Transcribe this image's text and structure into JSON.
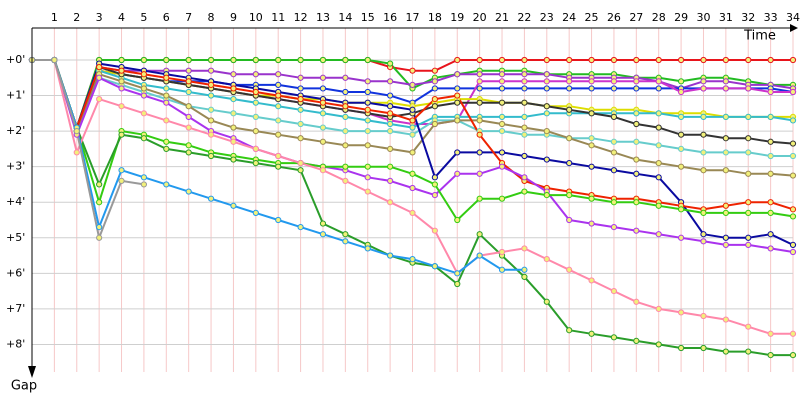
{
  "chart_data": {
    "type": "line",
    "x_label": "Time",
    "y_label": "Gap",
    "x": [
      0,
      1,
      2,
      3,
      4,
      5,
      6,
      7,
      8,
      9,
      10,
      11,
      12,
      13,
      14,
      15,
      16,
      17,
      18,
      19,
      20,
      21,
      22,
      23,
      24,
      25,
      26,
      27,
      28,
      29,
      30,
      31,
      32,
      33,
      34
    ],
    "xlim": [
      0,
      34
    ],
    "xticks": [
      1,
      2,
      3,
      4,
      5,
      6,
      7,
      8,
      9,
      10,
      11,
      12,
      13,
      14,
      15,
      16,
      17,
      18,
      19,
      20,
      21,
      22,
      23,
      24,
      25,
      26,
      27,
      28,
      29,
      30,
      31,
      32,
      33,
      34
    ],
    "ylim": [
      -0.9,
      9
    ],
    "y_inverted": true,
    "yticks": [
      {
        "value": 0,
        "label": "+0'"
      },
      {
        "value": 1,
        "label": "+1'"
      },
      {
        "value": 2,
        "label": "+2'"
      },
      {
        "value": 3,
        "label": "+3'"
      },
      {
        "value": 4,
        "label": "+4'"
      },
      {
        "value": 5,
        "label": "+5'"
      },
      {
        "value": 6,
        "label": "+6'"
      },
      {
        "value": 7,
        "label": "+7'"
      },
      {
        "value": 8,
        "label": "+8'"
      }
    ],
    "grid": true,
    "series": [
      {
        "color": "#e8141c",
        "values": [
          0,
          0,
          1.9,
          0,
          0,
          0,
          0,
          0,
          0,
          0,
          0,
          0,
          0,
          0,
          0,
          0,
          0.2,
          0.3,
          0.3,
          0,
          0,
          0,
          0,
          0,
          0,
          0,
          0,
          0,
          0,
          0,
          0,
          0,
          0,
          0,
          0
        ]
      },
      {
        "color": "#22bb22",
        "values": [
          0,
          0,
          1.9,
          0,
          0,
          0,
          0,
          0,
          0,
          0,
          0,
          0,
          0,
          0,
          0,
          0,
          0.1,
          0.8,
          0.5,
          0.4,
          0.3,
          0.3,
          0.3,
          0.4,
          0.4,
          0.4,
          0.4,
          0.5,
          0.5,
          0.6,
          0.5,
          0.5,
          0.6,
          0.7,
          0.7
        ]
      },
      {
        "color": "#9933cc",
        "values": [
          0,
          0,
          2.0,
          0.2,
          0.3,
          0.3,
          0.3,
          0.3,
          0.3,
          0.4,
          0.4,
          0.4,
          0.5,
          0.5,
          0.5,
          0.6,
          0.6,
          0.7,
          0.6,
          0.4,
          0.4,
          0.4,
          0.4,
          0.4,
          0.5,
          0.5,
          0.5,
          0.5,
          0.6,
          0.8,
          0.6,
          0.6,
          0.7,
          0.7,
          0.8
        ]
      },
      {
        "color": "#1133dd",
        "values": [
          0,
          0,
          1.9,
          0.3,
          0.4,
          0.5,
          0.6,
          0.6,
          0.6,
          0.7,
          0.7,
          0.7,
          0.8,
          0.8,
          0.9,
          0.9,
          1.0,
          1.2,
          0.8,
          0.8,
          0.8,
          0.8,
          0.8,
          0.8,
          0.8,
          0.8,
          0.8,
          0.8,
          0.8,
          0.8,
          0.8,
          0.8,
          0.8,
          0.8,
          0.9
        ]
      },
      {
        "color": "#cc33cc",
        "values": [
          0,
          0,
          2.0,
          0.3,
          0.4,
          0.5,
          0.6,
          0.7,
          0.8,
          0.9,
          1.0,
          1.1,
          1.2,
          1.3,
          1.4,
          1.5,
          1.7,
          1.8,
          1.8,
          1.7,
          0.6,
          0.6,
          0.6,
          0.6,
          0.6,
          0.6,
          0.6,
          0.6,
          0.6,
          0.9,
          0.8,
          0.8,
          0.8,
          0.9,
          0.9
        ]
      },
      {
        "color": "#dddd00",
        "values": [
          0,
          0,
          1.9,
          0.3,
          0.4,
          0.5,
          0.6,
          0.7,
          0.8,
          0.9,
          1.0,
          1.0,
          1.1,
          1.1,
          1.2,
          1.2,
          1.2,
          1.3,
          1.2,
          1.1,
          1.1,
          1.2,
          1.2,
          1.3,
          1.3,
          1.4,
          1.4,
          1.4,
          1.5,
          1.5,
          1.5,
          1.6,
          1.6,
          1.6,
          1.6
        ]
      },
      {
        "color": "#33bbcc",
        "values": [
          0,
          0,
          2.0,
          0.3,
          0.5,
          0.7,
          0.8,
          0.9,
          1.0,
          1.1,
          1.2,
          1.3,
          1.4,
          1.5,
          1.6,
          1.7,
          1.8,
          1.9,
          1.6,
          1.6,
          1.6,
          1.6,
          1.6,
          1.5,
          1.5,
          1.5,
          1.5,
          1.5,
          1.5,
          1.6,
          1.6,
          1.6,
          1.6,
          1.6,
          1.7
        ]
      },
      {
        "color": "#333333",
        "values": [
          0,
          0,
          1.9,
          0.2,
          0.4,
          0.5,
          0.6,
          0.7,
          0.8,
          0.9,
          1.0,
          1.1,
          1.2,
          1.3,
          1.4,
          1.5,
          1.6,
          1.5,
          1.3,
          1.2,
          1.2,
          1.2,
          1.2,
          1.3,
          1.4,
          1.5,
          1.6,
          1.8,
          1.9,
          2.1,
          2.1,
          2.2,
          2.2,
          2.3,
          2.35
        ]
      },
      {
        "color": "#66cccc",
        "values": [
          0,
          0,
          2.0,
          0.5,
          0.7,
          0.9,
          1.1,
          1.3,
          1.4,
          1.5,
          1.6,
          1.7,
          1.8,
          1.9,
          2.0,
          2.0,
          2.0,
          2.1,
          1.7,
          1.7,
          2.0,
          2.0,
          2.1,
          2.1,
          2.2,
          2.2,
          2.3,
          2.3,
          2.4,
          2.5,
          2.6,
          2.6,
          2.6,
          2.7,
          2.7
        ]
      },
      {
        "color": "#998855",
        "values": [
          0,
          0,
          2.0,
          0.4,
          0.6,
          0.8,
          1.0,
          1.3,
          1.7,
          1.9,
          2.0,
          2.1,
          2.2,
          2.3,
          2.4,
          2.4,
          2.5,
          2.6,
          1.8,
          1.7,
          1.7,
          1.8,
          1.9,
          2.0,
          2.2,
          2.4,
          2.6,
          2.8,
          2.9,
          3.0,
          3.1,
          3.1,
          3.2,
          3.2,
          3.25
        ]
      },
      {
        "color": "#0a0aa0",
        "values": [
          0,
          0,
          1.9,
          0.1,
          0.2,
          0.3,
          0.4,
          0.5,
          0.6,
          0.7,
          0.8,
          0.9,
          1.0,
          1.1,
          1.2,
          1.2,
          1.3,
          1.4,
          3.3,
          2.6,
          2.6,
          2.6,
          2.7,
          2.8,
          2.9,
          3.0,
          3.1,
          3.2,
          3.3,
          4.0,
          4.9,
          5.0,
          5.0,
          4.9,
          5.2
        ]
      },
      {
        "color": "#ee2200",
        "values": [
          0,
          0,
          1.9,
          0.2,
          0.3,
          0.4,
          0.5,
          0.6,
          0.7,
          0.8,
          0.9,
          1.0,
          1.1,
          1.2,
          1.3,
          1.4,
          1.5,
          1.7,
          1.1,
          1.0,
          2.1,
          2.9,
          3.4,
          3.6,
          3.7,
          3.8,
          3.9,
          3.9,
          4.0,
          4.1,
          4.2,
          4.1,
          4.0,
          4.0,
          4.2
        ]
      },
      {
        "color": "#aa33ee",
        "values": [
          0,
          0,
          2.1,
          0.5,
          0.8,
          1.0,
          1.2,
          1.6,
          2.0,
          2.2,
          2.5,
          2.7,
          2.9,
          3.0,
          3.1,
          3.3,
          3.4,
          3.6,
          3.8,
          3.2,
          3.2,
          3.0,
          3.3,
          3.7,
          4.5,
          4.6,
          4.7,
          4.8,
          4.9,
          5.0,
          5.1,
          5.2,
          5.2,
          5.3,
          5.4
        ]
      },
      {
        "color": "#33cc11",
        "values": [
          0,
          0,
          1.9,
          4.0,
          2.0,
          2.1,
          2.3,
          2.4,
          2.6,
          2.7,
          2.8,
          2.9,
          2.9,
          3.0,
          3.0,
          3.0,
          3.0,
          3.2,
          3.5,
          4.5,
          3.9,
          3.9,
          3.7,
          3.8,
          3.8,
          3.9,
          4.0,
          4.0,
          4.1,
          4.2,
          4.3,
          4.3,
          4.3,
          4.3,
          4.4
        ]
      },
      {
        "color": "#2a9d2a",
        "values": [
          0,
          0,
          1.9,
          3.5,
          2.1,
          2.2,
          2.5,
          2.6,
          2.7,
          2.8,
          2.9,
          3.0,
          3.1,
          4.6,
          4.9,
          5.2,
          5.5,
          5.7,
          5.8,
          6.3,
          4.9,
          5.5,
          6.1,
          6.8,
          7.6,
          7.7,
          7.8,
          7.9,
          8.0,
          8.1,
          8.1,
          8.2,
          8.2,
          8.3,
          8.3
        ]
      },
      {
        "color": "#ff88aa",
        "values": [
          0,
          0,
          2.6,
          1.1,
          1.3,
          1.5,
          1.7,
          1.9,
          2.1,
          2.3,
          2.5,
          2.7,
          2.9,
          3.1,
          3.4,
          3.7,
          4.0,
          4.3,
          4.8,
          6.0,
          5.5,
          5.4,
          5.3,
          5.6,
          5.9,
          6.2,
          6.5,
          6.8,
          7.0,
          7.1,
          7.2,
          7.3,
          7.5,
          7.7,
          7.7
        ]
      },
      {
        "color": "#2299ee",
        "values": [
          0,
          0,
          1.9,
          4.7,
          3.1,
          3.3,
          3.5,
          3.7,
          3.9,
          4.1,
          4.3,
          4.5,
          4.7,
          4.9,
          5.1,
          5.3,
          5.5,
          5.6,
          5.8,
          6.0,
          5.5,
          5.9,
          5.9,
          null,
          null,
          null,
          null,
          null,
          null,
          null,
          null,
          null,
          null,
          null,
          null
        ]
      },
      {
        "color": "#999999",
        "values": [
          0,
          0,
          2.0,
          5.0,
          3.4,
          3.5,
          null,
          null,
          null,
          null,
          null,
          null,
          null,
          null,
          null,
          null,
          null,
          null,
          null,
          null,
          null,
          null,
          null,
          null,
          null,
          null,
          null,
          null,
          null,
          null,
          null,
          null,
          null,
          null,
          null
        ]
      }
    ]
  }
}
